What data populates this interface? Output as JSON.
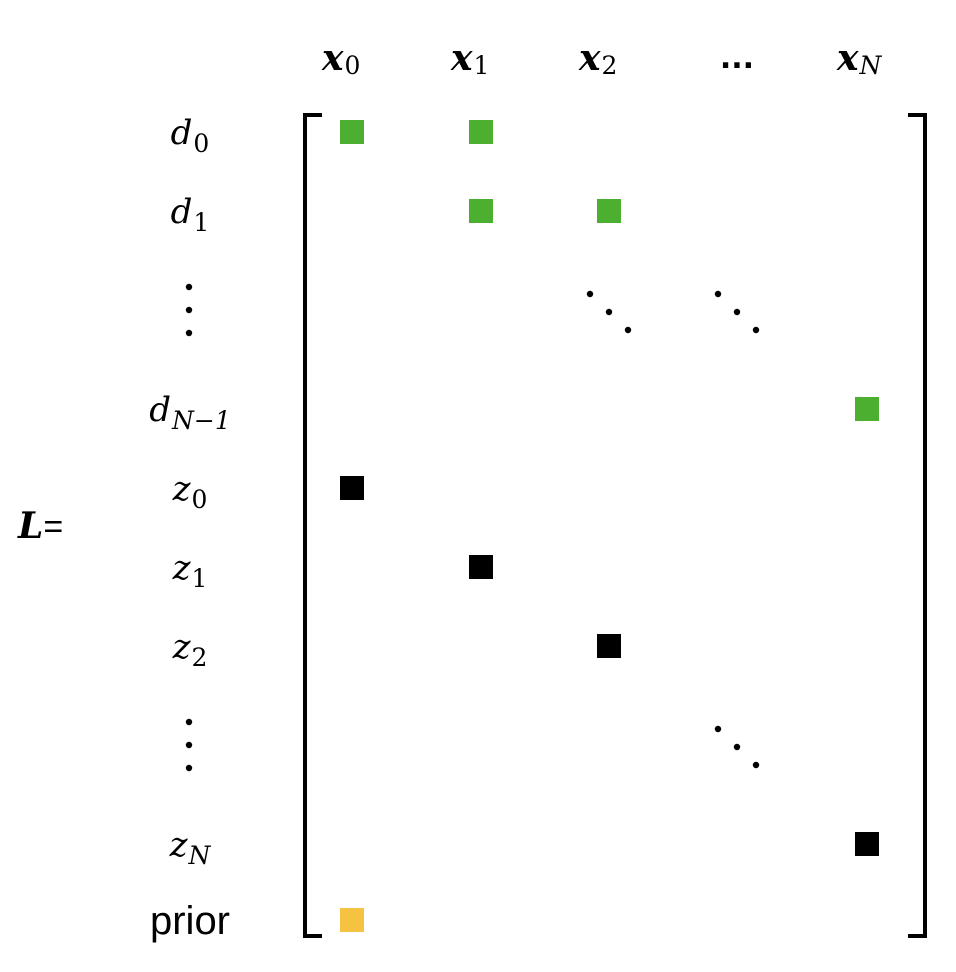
{
  "matrix_label": {
    "symbol": "L",
    "equals": "="
  },
  "columns": [
    {
      "base": "x",
      "sub": "0",
      "sub_italic": false
    },
    {
      "base": "x",
      "sub": "1",
      "sub_italic": false
    },
    {
      "base": "x",
      "sub": "2",
      "sub_italic": false
    },
    {
      "ellipsis": "..."
    },
    {
      "base": "x",
      "sub": "N",
      "sub_italic": true
    }
  ],
  "rows": [
    {
      "base": "d",
      "sub": "0",
      "sub_italic": false
    },
    {
      "base": "d",
      "sub": "1",
      "sub_italic": false
    },
    {
      "vdots": true
    },
    {
      "base": "d",
      "sub": "N−1",
      "sub_italic": true
    },
    {
      "base": "z",
      "sub": "0",
      "sub_italic": false
    },
    {
      "base": "z",
      "sub": "1",
      "sub_italic": false
    },
    {
      "base": "z",
      "sub": "2",
      "sub_italic": false
    },
    {
      "vdots": true
    },
    {
      "base": "z",
      "sub": "N",
      "sub_italic": true
    },
    {
      "plain": "prior"
    }
  ],
  "entries": [
    {
      "row": 0,
      "col": 0,
      "kind": "green"
    },
    {
      "row": 0,
      "col": 1,
      "kind": "green"
    },
    {
      "row": 1,
      "col": 1,
      "kind": "green"
    },
    {
      "row": 1,
      "col": 2,
      "kind": "green"
    },
    {
      "row": 3,
      "col": 4,
      "kind": "green"
    },
    {
      "row": 4,
      "col": 0,
      "kind": "black"
    },
    {
      "row": 5,
      "col": 1,
      "kind": "black"
    },
    {
      "row": 6,
      "col": 2,
      "kind": "black"
    },
    {
      "row": 8,
      "col": 4,
      "kind": "black"
    },
    {
      "row": 9,
      "col": 0,
      "kind": "yellow"
    }
  ],
  "ddots": [
    {
      "row": 2,
      "col": 2
    },
    {
      "row": 2,
      "col": 3
    },
    {
      "row": 7,
      "col": 3
    }
  ],
  "colors": {
    "green": "#4caf2f",
    "black": "#000000",
    "yellow": "#f5c242"
  }
}
